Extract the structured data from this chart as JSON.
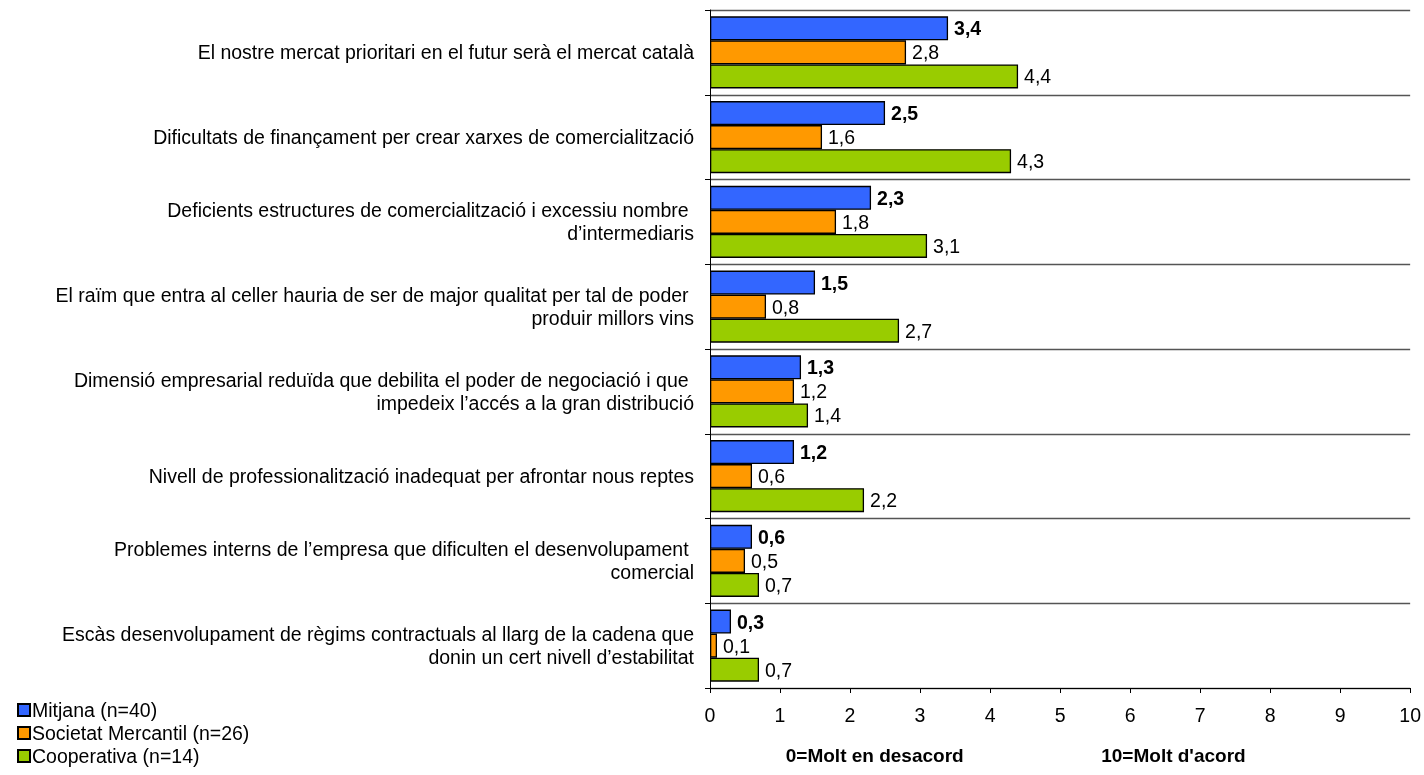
{
  "chart_data": {
    "type": "bar",
    "orientation": "horizontal",
    "categories": [
      "El nostre mercat prioritari en el futur serà el mercat català",
      "Dificultats de finançament per crear xarxes de comercialització",
      "Deficients estructures de comercialització i excessiu nombre d’intermediaris",
      "El raïm que entra al celler hauria de ser de major qualitat per tal de poder produir millors vins",
      "Dimensió empresarial reduïda que debilita el poder de negociació i que impedeix l’accés a la gran distribució",
      "Nivell de professionalització inadequat per afrontar nous reptes",
      "Problemes interns de l’empresa que dificulten el desenvolupament comercial",
      "Escàs desenvolupament de règims contractuals al llarg de la cadena que donin un cert nivell d’estabilitat"
    ],
    "series": [
      {
        "name": "Mitjana (n=40)",
        "color": "#3366ff",
        "values": [
          3.4,
          2.5,
          2.3,
          1.5,
          1.3,
          1.2,
          0.6,
          0.3
        ],
        "value_labels": [
          "3,4",
          "2,5",
          "2,3",
          "1,5",
          "1,3",
          "1,2",
          "0,6",
          "0,3"
        ]
      },
      {
        "name": "Societat Mercantil (n=26)",
        "color": "#ff9900",
        "values": [
          2.8,
          1.6,
          1.8,
          0.8,
          1.2,
          0.6,
          0.5,
          0.1
        ],
        "value_labels": [
          "2,8",
          "1,6",
          "1,8",
          "0,8",
          "1,2",
          "0,6",
          "0,5",
          "0,1"
        ]
      },
      {
        "name": "Cooperativa (n=14)",
        "color": "#99cc00",
        "values": [
          4.4,
          4.3,
          3.1,
          2.7,
          1.4,
          2.2,
          0.7,
          0.7
        ],
        "value_labels": [
          "4,4",
          "4,3",
          "3,1",
          "2,7",
          "1,4",
          "2,2",
          "0,7",
          "0,7"
        ]
      }
    ],
    "xlim": [
      0,
      10
    ],
    "xticks": [
      0,
      1,
      2,
      3,
      4,
      5,
      6,
      7,
      8,
      9,
      10
    ],
    "grid": "y",
    "legend": "bottom left",
    "annotations": [
      "0=Molt en desacord",
      "10=Molt d'acord"
    ]
  }
}
